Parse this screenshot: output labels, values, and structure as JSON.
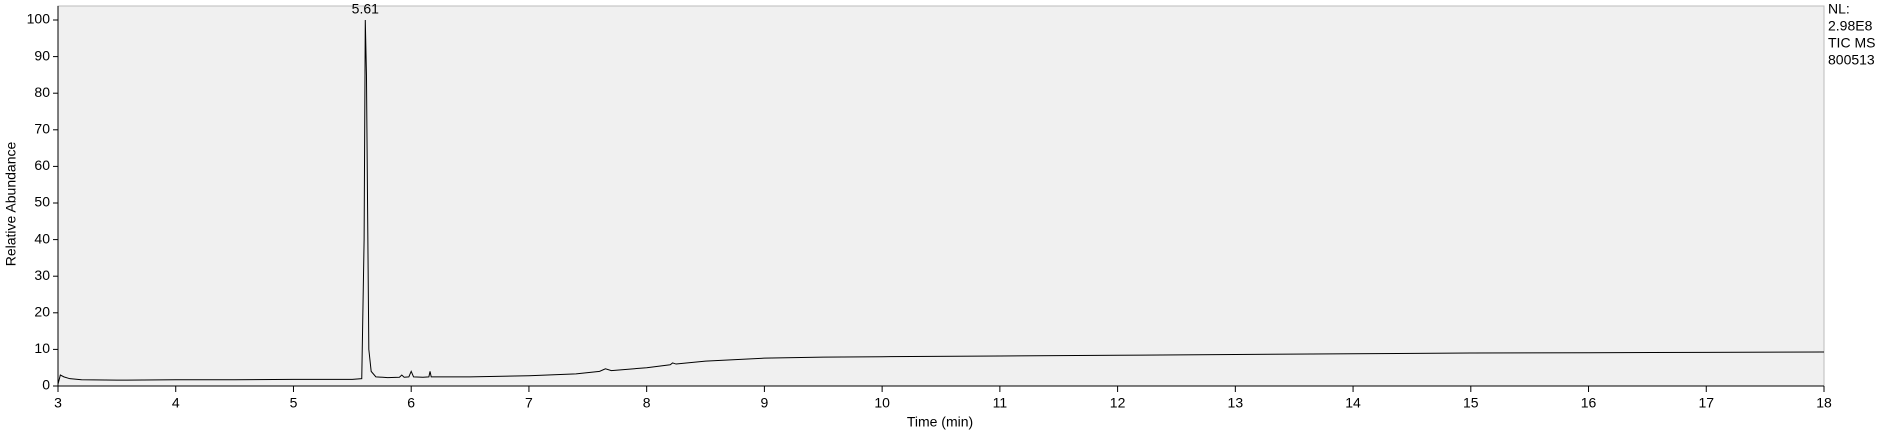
{
  "chart_data": {
    "type": "line",
    "x_label": "Time (min)",
    "y_label": "Relative Abundance",
    "xlim": [
      3,
      18
    ],
    "ylim": [
      0,
      100
    ],
    "xticks": [
      3,
      4,
      5,
      6,
      7,
      8,
      9,
      10,
      11,
      12,
      13,
      14,
      15,
      16,
      17,
      18
    ],
    "yticks": [
      0,
      10,
      20,
      30,
      40,
      50,
      60,
      70,
      80,
      90,
      100
    ],
    "annotations": [
      {
        "x": 5.61,
        "text": "5.61"
      }
    ],
    "info": [
      "NL:",
      "2.98E8",
      "TIC  MS",
      "800513"
    ],
    "x": [
      3.0,
      3.02,
      3.05,
      3.1,
      3.2,
      3.5,
      4.0,
      4.5,
      5.0,
      5.5,
      5.58,
      5.6,
      5.61,
      5.62,
      5.63,
      5.64,
      5.66,
      5.7,
      5.8,
      5.9,
      5.92,
      5.94,
      5.98,
      6.0,
      6.02,
      6.1,
      6.15,
      6.16,
      6.17,
      6.5,
      7.0,
      7.4,
      7.6,
      7.65,
      7.7,
      8.0,
      8.2,
      8.22,
      8.25,
      8.5,
      9.0,
      9.5,
      10.0,
      11.0,
      12.0,
      13.0,
      14.0,
      15.0,
      16.0,
      17.0,
      18.0
    ],
    "series": [
      {
        "name": "TIC",
        "color": "#000000",
        "values": [
          0.5,
          3,
          2.5,
          2,
          1.7,
          1.6,
          1.7,
          1.7,
          1.8,
          1.8,
          2,
          40,
          100,
          85,
          47,
          10,
          4,
          2.5,
          2.3,
          2.4,
          3,
          2.4,
          2.5,
          4,
          2.5,
          2.4,
          2.5,
          4,
          2.5,
          2.5,
          2.8,
          3.3,
          4,
          4.7,
          4.2,
          5,
          5.8,
          6.3,
          6,
          6.8,
          7.6,
          7.9,
          8,
          8.2,
          8.4,
          8.6,
          8.8,
          9,
          9.1,
          9.2,
          9.3
        ]
      }
    ]
  }
}
